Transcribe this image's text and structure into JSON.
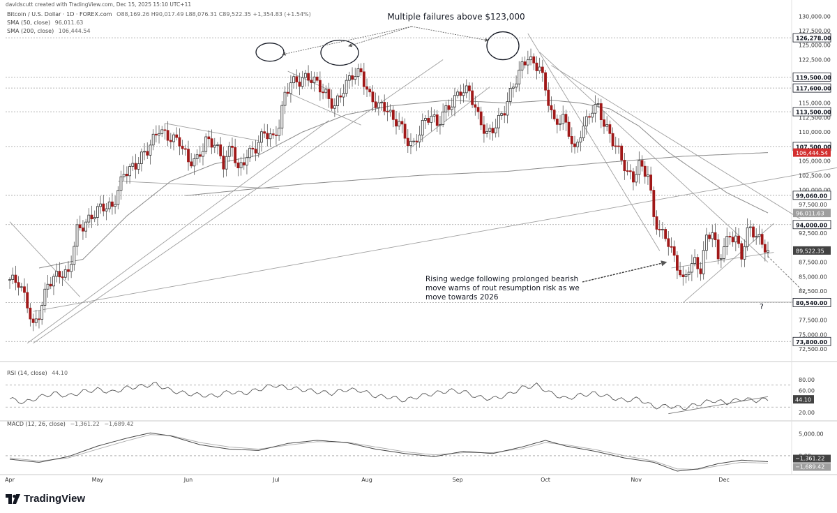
{
  "created_by": "davidscutt created with TradingView.com, Dec 15, 2025 15:10 UTC+11",
  "brand": "TradingView",
  "legend": {
    "symbol": "Bitcoin / U.S. Dollar · 1D · FOREX.com",
    "ohlc": "O88,169.26 H90,017.49 L88,076.31 C89,522.35 +1,354.83 (+1.54%)",
    "sma50_label": "SMA (50, close)",
    "sma50_value": "96,011.63",
    "sma200_label": "SMA (200, close)",
    "sma200_value": "106,444.54"
  },
  "rsi_legend": {
    "label": "RSI (14, close)",
    "value": "44.10"
  },
  "macd_legend": {
    "label": "MACD (12, 26, close)",
    "value1": "−1,361.22",
    "value2": "−1,689.42"
  },
  "annotations": {
    "top": "Multiple failures above $123,000",
    "wedge": [
      "Rising wedge following prolonged bearish",
      "move warns of rout resumption risk as we",
      "move towards 2026"
    ],
    "question": "?"
  },
  "chart_data": {
    "type": "candlestick",
    "price_axis": {
      "ylim": [
        71300,
        131000
      ],
      "ticks": [
        "130,000.00",
        "127,500.00",
        "125,000.00",
        "122,500.00",
        "115,000.00",
        "112,500.00",
        "110,000.00",
        "105,000.00",
        "102,500.00",
        "100,000.00",
        "97,500.00",
        "92,500.00",
        "87,500.00",
        "85,000.00",
        "82,500.00",
        "77,500.00",
        "75,000.00",
        "72,500.00"
      ],
      "tick_values": [
        130000,
        127500,
        125000,
        122500,
        115000,
        112500,
        110000,
        105000,
        102500,
        100000,
        97500,
        92500,
        87500,
        85000,
        82500,
        77500,
        75000,
        72500
      ]
    },
    "levels": [
      {
        "value": 126278,
        "label": "126,278.00"
      },
      {
        "value": 119500,
        "label": "119,500.00"
      },
      {
        "value": 117600,
        "label": "117,600.00"
      },
      {
        "value": 113500,
        "label": "113,500.00"
      },
      {
        "value": 107500,
        "label": "107,500.00"
      },
      {
        "value": 99060,
        "label": "99,060.00"
      },
      {
        "value": 94000,
        "label": "94,000.00"
      },
      {
        "value": 80540,
        "label": "80,540.00"
      },
      {
        "value": 73800,
        "label": "73,800.00"
      }
    ],
    "price_badges": [
      {
        "value": 106444.54,
        "label": "106,444.54",
        "color": "#d32f2f"
      },
      {
        "value": 96011.63,
        "label": "96,011.63",
        "color": "#9e9e9e"
      },
      {
        "value": 89522.35,
        "label": "89,522.35",
        "color": "#424242"
      }
    ],
    "x_labels": [
      "Apr",
      "May",
      "Jun",
      "Jul",
      "Aug",
      "Sep",
      "Oct",
      "Nov",
      "Dec"
    ],
    "x_label_days": [
      0,
      30,
      61,
      91,
      122,
      153,
      183,
      214,
      244
    ],
    "days_total": 259,
    "anchors": [
      [
        0,
        84500
      ],
      [
        3,
        83500
      ],
      [
        6,
        80000
      ],
      [
        8,
        76500
      ],
      [
        10,
        79000
      ],
      [
        13,
        84000
      ],
      [
        17,
        85000
      ],
      [
        20,
        85200
      ],
      [
        23,
        93500
      ],
      [
        27,
        95000
      ],
      [
        31,
        96500
      ],
      [
        35,
        97000
      ],
      [
        39,
        103500
      ],
      [
        43,
        104000
      ],
      [
        47,
        106500
      ],
      [
        51,
        111000
      ],
      [
        54,
        109500
      ],
      [
        58,
        108000
      ],
      [
        61,
        104500
      ],
      [
        64,
        105500
      ],
      [
        67,
        109000
      ],
      [
        70,
        108000
      ],
      [
        73,
        104000
      ],
      [
        76,
        107500
      ],
      [
        78,
        103500
      ],
      [
        81,
        106500
      ],
      [
        84,
        107200
      ],
      [
        87,
        109500
      ],
      [
        90,
        108600
      ],
      [
        92,
        111500
      ],
      [
        94,
        117000
      ],
      [
        96,
        119000
      ],
      [
        99,
        118500
      ],
      [
        102,
        119000
      ],
      [
        105,
        118500
      ],
      [
        108,
        117000
      ],
      [
        111,
        114500
      ],
      [
        114,
        117000
      ],
      [
        117,
        119500
      ],
      [
        120,
        120500
      ],
      [
        123,
        116500
      ],
      [
        126,
        114500
      ],
      [
        129,
        113500
      ],
      [
        131,
        111500
      ],
      [
        133,
        112000
      ],
      [
        135,
        109500
      ],
      [
        138,
        108000
      ],
      [
        141,
        111000
      ],
      [
        144,
        112500
      ],
      [
        146,
        111000
      ],
      [
        148,
        113500
      ],
      [
        151,
        115500
      ],
      [
        154,
        117000
      ],
      [
        157,
        116500
      ],
      [
        160,
        112500
      ],
      [
        163,
        110000
      ],
      [
        166,
        111500
      ],
      [
        169,
        113500
      ],
      [
        172,
        117500
      ],
      [
        175,
        121500
      ],
      [
        177,
        123500
      ],
      [
        179,
        122000
      ],
      [
        181,
        121500
      ],
      [
        183,
        117000
      ],
      [
        186,
        111000
      ],
      [
        189,
        112500
      ],
      [
        191,
        110500
      ],
      [
        193,
        107000
      ],
      [
        195,
        110000
      ],
      [
        197,
        111500
      ],
      [
        199,
        113500
      ],
      [
        201,
        114000
      ],
      [
        203,
        111500
      ],
      [
        205,
        110000
      ],
      [
        208,
        107000
      ],
      [
        211,
        102500
      ],
      [
        213,
        101500
      ],
      [
        215,
        104000
      ],
      [
        218,
        103000
      ],
      [
        220,
        96000
      ],
      [
        222,
        93000
      ],
      [
        224,
        92000
      ],
      [
        226,
        89000
      ],
      [
        228,
        86500
      ],
      [
        230,
        84000
      ],
      [
        232,
        87000
      ],
      [
        234,
        88000
      ],
      [
        236,
        86500
      ],
      [
        238,
        91500
      ],
      [
        240,
        92500
      ],
      [
        242,
        87500
      ],
      [
        244,
        90000
      ],
      [
        246,
        92500
      ],
      [
        248,
        92000
      ],
      [
        250,
        89000
      ],
      [
        252,
        92500
      ],
      [
        253,
        93000
      ],
      [
        255,
        91500
      ],
      [
        257,
        90500
      ],
      [
        259,
        89522
      ]
    ],
    "sma50_anchors": [
      [
        10,
        86500
      ],
      [
        25,
        88000
      ],
      [
        40,
        95500
      ],
      [
        55,
        101500
      ],
      [
        70,
        104500
      ],
      [
        85,
        106000
      ],
      [
        100,
        110000
      ],
      [
        115,
        113000
      ],
      [
        130,
        114500
      ],
      [
        150,
        115500
      ],
      [
        170,
        115000
      ],
      [
        185,
        115500
      ],
      [
        195,
        115000
      ],
      [
        205,
        114000
      ],
      [
        215,
        111000
      ],
      [
        225,
        106500
      ],
      [
        235,
        103000
      ],
      [
        245,
        99500
      ],
      [
        259,
        96011
      ]
    ],
    "sma200_anchors": [
      [
        60,
        99000
      ],
      [
        100,
        101000
      ],
      [
        140,
        102500
      ],
      [
        170,
        103200
      ],
      [
        200,
        104600
      ],
      [
        230,
        105800
      ],
      [
        259,
        106444
      ]
    ],
    "rsi": {
      "ylim": [
        15,
        85
      ],
      "ticks": [
        "80.00",
        "60.00",
        "20.00"
      ],
      "tick_values": [
        80,
        60,
        20
      ],
      "value_label": "44.10",
      "anchors": [
        [
          0,
          45
        ],
        [
          5,
          38
        ],
        [
          10,
          48
        ],
        [
          15,
          55
        ],
        [
          20,
          50
        ],
        [
          25,
          58
        ],
        [
          30,
          62
        ],
        [
          35,
          57
        ],
        [
          40,
          65
        ],
        [
          45,
          68
        ],
        [
          50,
          72
        ],
        [
          55,
          60
        ],
        [
          60,
          55
        ],
        [
          65,
          52
        ],
        [
          70,
          50
        ],
        [
          75,
          58
        ],
        [
          80,
          55
        ],
        [
          85,
          62
        ],
        [
          90,
          70
        ],
        [
          95,
          65
        ],
        [
          100,
          62
        ],
        [
          105,
          58
        ],
        [
          110,
          55
        ],
        [
          115,
          62
        ],
        [
          120,
          60
        ],
        [
          125,
          50
        ],
        [
          130,
          48
        ],
        [
          135,
          42
        ],
        [
          140,
          50
        ],
        [
          145,
          55
        ],
        [
          150,
          60
        ],
        [
          155,
          58
        ],
        [
          160,
          48
        ],
        [
          165,
          45
        ],
        [
          170,
          52
        ],
        [
          175,
          65
        ],
        [
          180,
          70
        ],
        [
          185,
          55
        ],
        [
          190,
          45
        ],
        [
          195,
          52
        ],
        [
          200,
          55
        ],
        [
          205,
          48
        ],
        [
          210,
          42
        ],
        [
          215,
          45
        ],
        [
          220,
          30
        ],
        [
          225,
          32
        ],
        [
          230,
          28
        ],
        [
          235,
          35
        ],
        [
          240,
          42
        ],
        [
          245,
          38
        ],
        [
          250,
          45
        ],
        [
          255,
          42
        ],
        [
          259,
          44
        ]
      ]
    },
    "macd": {
      "ylim": [
        -3500,
        6500
      ],
      "ticks": [
        "5,000.00",
        "0.00"
      ],
      "tick_values": [
        5000,
        0
      ],
      "value_labels": [
        "−1,361.22",
        "−1,689.42"
      ],
      "anchors": [
        [
          0,
          -800
        ],
        [
          10,
          -1500
        ],
        [
          20,
          -200
        ],
        [
          30,
          2200
        ],
        [
          40,
          4000
        ],
        [
          48,
          5200
        ],
        [
          55,
          4500
        ],
        [
          65,
          2500
        ],
        [
          75,
          1500
        ],
        [
          85,
          1200
        ],
        [
          95,
          2800
        ],
        [
          105,
          3500
        ],
        [
          115,
          3000
        ],
        [
          125,
          1500
        ],
        [
          135,
          500
        ],
        [
          145,
          -200
        ],
        [
          155,
          1000
        ],
        [
          165,
          500
        ],
        [
          175,
          2000
        ],
        [
          183,
          3500
        ],
        [
          190,
          2200
        ],
        [
          200,
          1000
        ],
        [
          210,
          -500
        ],
        [
          220,
          -1500
        ],
        [
          228,
          -3500
        ],
        [
          235,
          -3000
        ],
        [
          242,
          -1800
        ],
        [
          250,
          -1000
        ],
        [
          259,
          -1361
        ]
      ],
      "signal_anchors": [
        [
          0,
          -500
        ],
        [
          10,
          -1200
        ],
        [
          20,
          -500
        ],
        [
          30,
          1500
        ],
        [
          40,
          3400
        ],
        [
          48,
          4800
        ],
        [
          55,
          4600
        ],
        [
          65,
          3000
        ],
        [
          75,
          2000
        ],
        [
          85,
          1500
        ],
        [
          95,
          2400
        ],
        [
          105,
          3200
        ],
        [
          115,
          3100
        ],
        [
          125,
          2000
        ],
        [
          135,
          900
        ],
        [
          145,
          200
        ],
        [
          155,
          700
        ],
        [
          165,
          700
        ],
        [
          175,
          1600
        ],
        [
          183,
          3000
        ],
        [
          190,
          2500
        ],
        [
          200,
          1400
        ],
        [
          210,
          0
        ],
        [
          220,
          -1200
        ],
        [
          228,
          -3000
        ],
        [
          235,
          -3100
        ],
        [
          242,
          -2300
        ],
        [
          250,
          -1500
        ],
        [
          259,
          -1689
        ]
      ]
    }
  }
}
